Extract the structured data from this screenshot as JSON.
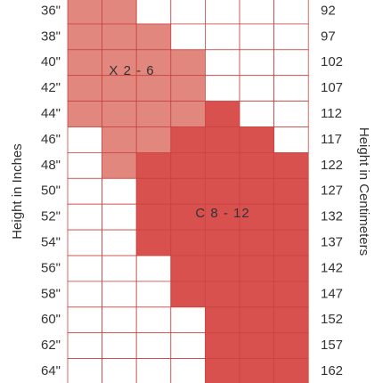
{
  "axis_titles": {
    "left": "Height in Inches",
    "right": "Height in Centimeters"
  },
  "left_labels": [
    "36\"",
    "38\"",
    "40\"",
    "42\"",
    "44\"",
    "46\"",
    "48\"",
    "50\"",
    "52\"",
    "54\"",
    "56\"",
    "58\"",
    "60\"",
    "62\"",
    "64\""
  ],
  "right_labels": [
    "92",
    "97",
    "102",
    "107",
    "112",
    "117",
    "122",
    "127",
    "132",
    "137",
    "142",
    "147",
    "152",
    "157",
    "162"
  ],
  "regions": [
    "X 2 - 6",
    "C 8 - 12"
  ]
}
